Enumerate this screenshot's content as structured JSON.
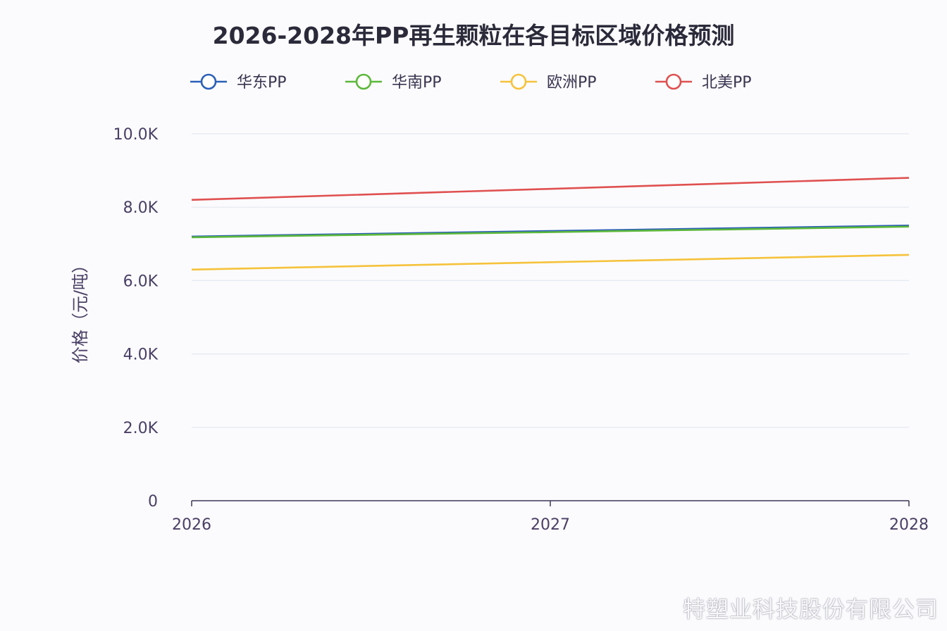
{
  "chart_data": {
    "type": "line",
    "title": "2026-2028年PP再生颗粒在各目标区域价格预测",
    "ylabel": "价格（元/吨）",
    "xlabel": "",
    "x": [
      2026,
      2027,
      2028
    ],
    "x_tick_labels": [
      "2026",
      "2027",
      "2028"
    ],
    "ylim": [
      0,
      10000
    ],
    "y_ticks": [
      0,
      2000,
      4000,
      6000,
      8000,
      10000
    ],
    "y_tick_labels": [
      "0",
      "2.0K",
      "4.0K",
      "6.0K",
      "8.0K",
      "10.0K"
    ],
    "grid": true,
    "legend_position": "top",
    "series": [
      {
        "name": "华东PP",
        "color": "#2b5fb8",
        "values": [
          7200,
          7350,
          7500
        ]
      },
      {
        "name": "华南PP",
        "color": "#5cb83a",
        "values": [
          7180,
          7320,
          7470
        ]
      },
      {
        "name": "欧洲PP",
        "color": "#f5c23a",
        "values": [
          6300,
          6500,
          6700
        ]
      },
      {
        "name": "北美PP",
        "color": "#e05050",
        "values": [
          8200,
          8500,
          8800
        ]
      }
    ]
  },
  "watermark": "特塑业科技股份有限公司"
}
